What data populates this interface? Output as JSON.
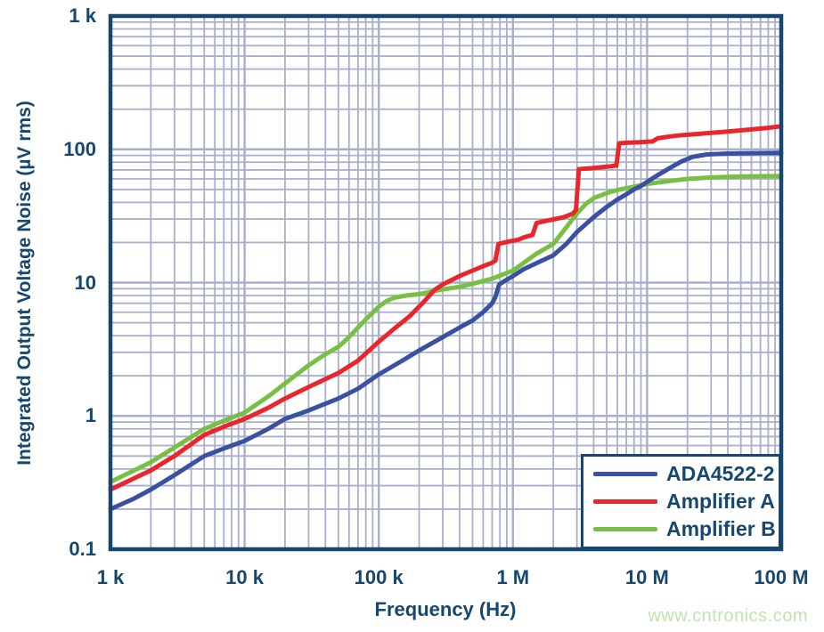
{
  "watermark": "www.cntronics.com",
  "colors": {
    "navy": "#15476f",
    "grid": "#a9aecb",
    "background": "#ffffff",
    "watermark_green": "#c0e4ae"
  },
  "chart_data": {
    "type": "line",
    "title": "",
    "xlabel": "Frequency (Hz)",
    "ylabel": "Integrated Output Voltage Noise (µV rms)",
    "x_scale": "log",
    "y_scale": "log",
    "xlim": [
      1000,
      100000000
    ],
    "ylim": [
      0.1,
      1000
    ],
    "grid": "log major and minor gridlines, both axes",
    "legend_position": "lower right",
    "x_ticks": [
      {
        "value": 1000,
        "label": "1 k"
      },
      {
        "value": 10000,
        "label": "10 k"
      },
      {
        "value": 100000,
        "label": "100 k"
      },
      {
        "value": 1000000,
        "label": "1 M"
      },
      {
        "value": 10000000,
        "label": "10 M"
      },
      {
        "value": 100000000,
        "label": "100 M"
      }
    ],
    "y_ticks": [
      {
        "value": 1000,
        "label": "1 k"
      },
      {
        "value": 100,
        "label": "100"
      },
      {
        "value": 10,
        "label": "10"
      },
      {
        "value": 1,
        "label": "1"
      },
      {
        "value": 0.1,
        "label": "0.1"
      }
    ],
    "series": [
      {
        "name": "ADA4522-2",
        "color": "#3a50a0",
        "points": [
          [
            1000,
            0.2
          ],
          [
            1500,
            0.24
          ],
          [
            2000,
            0.28
          ],
          [
            3000,
            0.36
          ],
          [
            5000,
            0.5
          ],
          [
            7000,
            0.57
          ],
          [
            10000,
            0.65
          ],
          [
            15000,
            0.8
          ],
          [
            20000,
            0.95
          ],
          [
            30000,
            1.1
          ],
          [
            50000,
            1.35
          ],
          [
            70000,
            1.6
          ],
          [
            100000,
            2.05
          ],
          [
            150000,
            2.6
          ],
          [
            200000,
            3.1
          ],
          [
            300000,
            3.9
          ],
          [
            400000,
            4.6
          ],
          [
            500000,
            5.2
          ],
          [
            600000,
            6.0
          ],
          [
            700000,
            7.0
          ],
          [
            740000,
            7.8
          ],
          [
            790000,
            9.7
          ],
          [
            900000,
            10.5
          ],
          [
            1000000,
            11.2
          ],
          [
            1200000,
            12.6
          ],
          [
            1500000,
            14
          ],
          [
            2000000,
            16
          ],
          [
            2500000,
            19.5
          ],
          [
            3000000,
            24
          ],
          [
            4000000,
            31
          ],
          [
            5000000,
            37
          ],
          [
            6000000,
            42
          ],
          [
            7000000,
            46
          ],
          [
            8000000,
            50
          ],
          [
            9000000,
            53
          ],
          [
            10000000,
            57
          ],
          [
            12000000,
            64
          ],
          [
            15000000,
            73
          ],
          [
            18000000,
            81
          ],
          [
            22000000,
            88
          ],
          [
            28000000,
            91.5
          ],
          [
            40000000,
            93
          ],
          [
            60000000,
            93.5
          ],
          [
            100000000,
            94
          ]
        ]
      },
      {
        "name": "Amplifier A",
        "color": "#e9262b",
        "points": [
          [
            1000,
            0.28
          ],
          [
            1500,
            0.34
          ],
          [
            2000,
            0.39
          ],
          [
            3000,
            0.5
          ],
          [
            5000,
            0.72
          ],
          [
            7000,
            0.83
          ],
          [
            10000,
            0.95
          ],
          [
            15000,
            1.15
          ],
          [
            20000,
            1.35
          ],
          [
            30000,
            1.65
          ],
          [
            50000,
            2.1
          ],
          [
            70000,
            2.6
          ],
          [
            100000,
            3.6
          ],
          [
            130000,
            4.5
          ],
          [
            170000,
            5.6
          ],
          [
            220000,
            7.3
          ],
          [
            260000,
            8.8
          ],
          [
            300000,
            9.7
          ],
          [
            400000,
            11.2
          ],
          [
            500000,
            12.3
          ],
          [
            600000,
            13.3
          ],
          [
            700000,
            14.1
          ],
          [
            740000,
            14.6
          ],
          [
            780000,
            19.5
          ],
          [
            900000,
            20.2
          ],
          [
            1100000,
            21
          ],
          [
            1200000,
            21.8
          ],
          [
            1400000,
            22.8
          ],
          [
            1500000,
            28
          ],
          [
            1700000,
            28.8
          ],
          [
            2000000,
            29.8
          ],
          [
            2400000,
            31
          ],
          [
            2800000,
            33
          ],
          [
            2950000,
            35
          ],
          [
            3100000,
            71
          ],
          [
            4000000,
            72.5
          ],
          [
            5000000,
            74
          ],
          [
            5900000,
            75.5
          ],
          [
            6200000,
            111
          ],
          [
            7000000,
            112
          ],
          [
            9000000,
            113
          ],
          [
            11000000,
            114.5
          ],
          [
            12000000,
            121
          ],
          [
            14000000,
            124
          ],
          [
            17000000,
            127
          ],
          [
            25000000,
            131
          ],
          [
            40000000,
            136
          ],
          [
            60000000,
            141
          ],
          [
            80000000,
            145
          ],
          [
            100000000,
            149
          ]
        ]
      },
      {
        "name": "Amplifier B",
        "color": "#78c043",
        "points": [
          [
            1000,
            0.32
          ],
          [
            1500,
            0.39
          ],
          [
            2000,
            0.45
          ],
          [
            3000,
            0.58
          ],
          [
            5000,
            0.8
          ],
          [
            7000,
            0.92
          ],
          [
            10000,
            1.06
          ],
          [
            15000,
            1.4
          ],
          [
            20000,
            1.75
          ],
          [
            30000,
            2.4
          ],
          [
            40000,
            2.9
          ],
          [
            50000,
            3.3
          ],
          [
            60000,
            3.9
          ],
          [
            70000,
            4.6
          ],
          [
            80000,
            5.3
          ],
          [
            100000,
            6.6
          ],
          [
            115000,
            7.3
          ],
          [
            130000,
            7.7
          ],
          [
            160000,
            8.0
          ],
          [
            200000,
            8.2
          ],
          [
            300000,
            8.9
          ],
          [
            400000,
            9.3
          ],
          [
            500000,
            9.8
          ],
          [
            700000,
            10.7
          ],
          [
            1000000,
            12.3
          ],
          [
            1200000,
            14
          ],
          [
            1500000,
            16.5
          ],
          [
            2000000,
            19.5
          ],
          [
            2500000,
            26
          ],
          [
            3000000,
            33
          ],
          [
            3500000,
            39
          ],
          [
            4000000,
            43
          ],
          [
            5000000,
            47
          ],
          [
            6000000,
            49.5
          ],
          [
            8000000,
            52.5
          ],
          [
            10000000,
            55
          ],
          [
            15000000,
            58
          ],
          [
            20000000,
            60
          ],
          [
            30000000,
            61.5
          ],
          [
            50000000,
            62.5
          ],
          [
            100000000,
            63
          ]
        ]
      }
    ]
  }
}
